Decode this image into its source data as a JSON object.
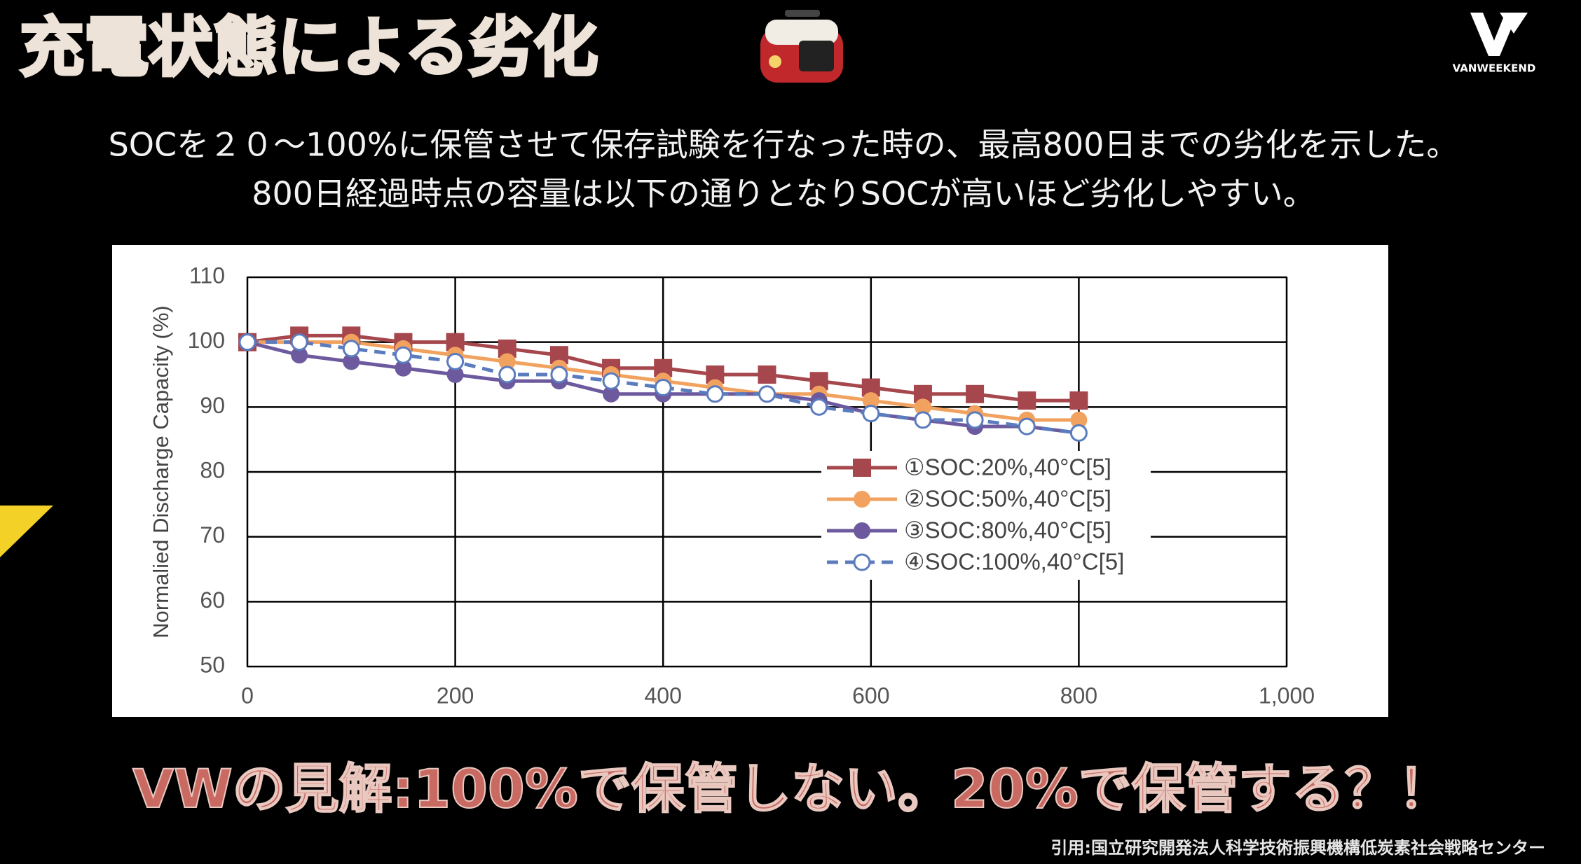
{
  "title": "充電状態による劣化",
  "logo": "VANWEEKEND",
  "description": [
    "SOCを２０～100%に保管させて保存試験を行なった時の、最高800日までの劣化を示した。",
    "800日経過時点の容量は以下の通りとなりSOCが高いほど劣化しやすい。"
  ],
  "chart_data": {
    "type": "line",
    "y_label": "Normalied Discharge Capacity (%)",
    "x": [
      0,
      50,
      100,
      150,
      200,
      250,
      300,
      350,
      400,
      450,
      500,
      550,
      600,
      650,
      700,
      750,
      800
    ],
    "series": [
      {
        "name": "①SOC:20%,40°C[5]",
        "color": "#a5474c",
        "marker": "square",
        "dash": false,
        "values": [
          100,
          101,
          101,
          100,
          100,
          99,
          98,
          96,
          96,
          95,
          95,
          94,
          93,
          92,
          92,
          91,
          91
        ]
      },
      {
        "name": "②SOC:50%,40°C[5]",
        "color": "#f2a25f",
        "marker": "circle",
        "dash": false,
        "values": [
          100,
          100,
          100,
          99,
          98,
          97,
          96,
          95,
          94,
          93,
          92,
          92,
          91,
          90,
          89,
          88,
          88
        ]
      },
      {
        "name": "③SOC:80%,40°C[5]",
        "color": "#6d5a9e",
        "marker": "circle",
        "dash": false,
        "values": [
          100,
          98,
          97,
          96,
          95,
          94,
          94,
          92,
          92,
          92,
          92,
          91,
          89,
          88,
          87,
          87,
          86
        ]
      },
      {
        "name": "④SOC:100%,40°C[5]",
        "color": "#5a7bbd",
        "marker": "open-circle",
        "dash": true,
        "values": [
          100,
          100,
          99,
          98,
          97,
          95,
          95,
          94,
          93,
          92,
          92,
          90,
          89,
          88,
          88,
          87,
          86
        ]
      }
    ],
    "xlim": [
      0,
      1000
    ],
    "xticks": [
      0,
      200,
      400,
      600,
      800,
      {
        "value": 1000,
        "label": "1,000"
      }
    ],
    "ylim": [
      50,
      110
    ],
    "yticks": [
      50,
      60,
      70,
      80,
      90,
      100,
      110
    ],
    "grid": true
  },
  "conclusion": "VWの見解:100%で保管しない。20%で保管する？！",
  "citation": "引用:国立研究開発法人科学技術振興機構低炭素社会戦略センター"
}
